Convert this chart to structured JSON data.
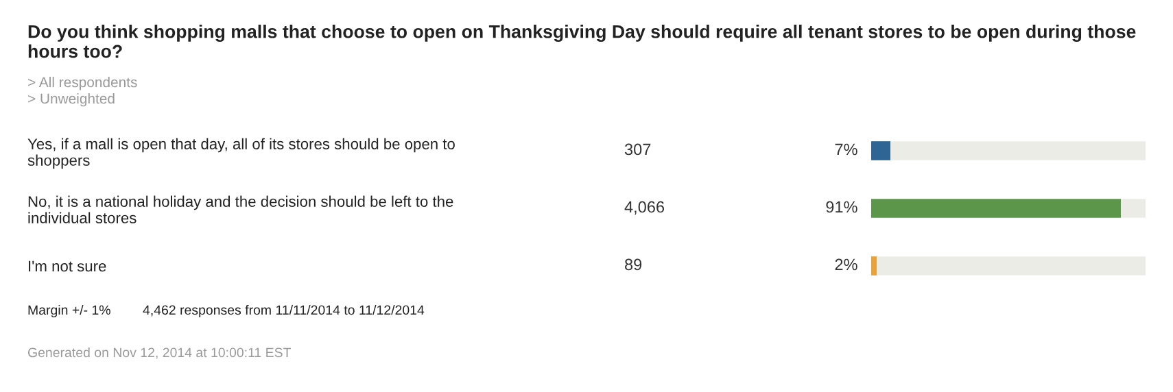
{
  "chart_data": {
    "type": "bar",
    "orientation": "horizontal",
    "stacked": true,
    "title": "Do you think shopping malls that choose to open on Thanksgiving Day should require all tenant stores to be open during those hours too?",
    "subtitle": "> All respondents\n> Unweighted",
    "categories": [
      "Yes, if a mall is open that day, all of its stores should be open to\nshoppers",
      "No, it is a national holiday and the decision should be left to the\nindividual stores",
      "I'm not sure"
    ],
    "series": [
      {
        "values": [
          7,
          91,
          2
        ],
        "colors": [
          "#2e6594",
          "#5b964a",
          "#e8a23a"
        ],
        "value_labels": [
          "7%",
          "91%",
          "2%"
        ]
      },
      {
        "values": [
          93,
          9,
          98
        ],
        "color": "#ecece6"
      }
    ],
    "xlim": [
      0,
      100
    ],
    "tick_labels": "y",
    "annotations": [
      "307",
      "4,066",
      "89",
      "Margin +/- 1%",
      "4,462 responses from 11/11/2014 to 11/12/2014",
      "Generated on Nov 12, 2014 at 10:00:11 EST"
    ]
  }
}
